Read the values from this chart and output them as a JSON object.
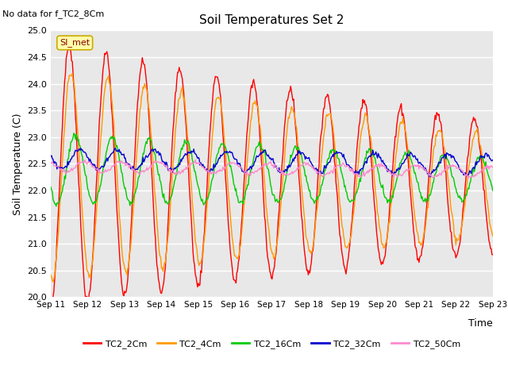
{
  "title": "Soil Temperatures Set 2",
  "subtitle": "No data for f_TC2_8Cm",
  "xlabel": "Time",
  "ylabel": "Soil Temperature (C)",
  "ylim": [
    20.0,
    25.0
  ],
  "yticks": [
    20.0,
    20.5,
    21.0,
    21.5,
    22.0,
    22.5,
    23.0,
    23.5,
    24.0,
    24.5,
    25.0
  ],
  "xtick_labels": [
    "Sep 11",
    "Sep 12",
    "Sep 13",
    "Sep 14",
    "Sep 15",
    "Sep 16",
    "Sep 17",
    "Sep 18",
    "Sep 19",
    "Sep 20",
    "Sep 21",
    "Sep 22",
    "Sep 23"
  ],
  "legend_labels": [
    "TC2_2Cm",
    "TC2_4Cm",
    "TC2_16Cm",
    "TC2_32Cm",
    "TC2_50Cm"
  ],
  "line_colors": [
    "#ff0000",
    "#ff9900",
    "#00cc00",
    "#0000cc",
    "#ff88cc"
  ],
  "line_widths": [
    1.0,
    1.0,
    1.0,
    1.0,
    1.0
  ],
  "annotation_text": "SI_met",
  "fig_bg_color": "#ffffff",
  "plot_bg_color": "#e8e8e8",
  "grid_color": "#ffffff",
  "n_points": 576
}
